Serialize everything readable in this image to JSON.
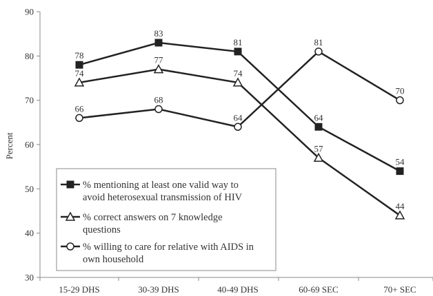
{
  "chart_data": {
    "type": "line",
    "categories": [
      "15-29 DHS",
      "30-39 DHS",
      "40-49 DHS",
      "60-69 SEC",
      "70+ SEC"
    ],
    "ylabel": "Percent",
    "xlabel": "",
    "ylim": [
      30,
      90
    ],
    "yticks": [
      30,
      40,
      50,
      60,
      70,
      80,
      90
    ],
    "grid": false,
    "legend_position": "bottom-left",
    "series": [
      {
        "name_lines": [
          "% mentioning at least one valid way to",
          "avoid heterosexual transmission of HIV"
        ],
        "marker": "filled-square",
        "values": [
          78,
          83,
          81,
          64,
          54
        ],
        "labels": [
          "78",
          "83",
          "81",
          "64",
          "54"
        ]
      },
      {
        "name_lines": [
          "% correct answers on 7 knowledge",
          "questions"
        ],
        "marker": "open-triangle",
        "values": [
          74,
          77,
          74,
          57,
          44
        ],
        "labels": [
          "74",
          "77",
          "74",
          "57",
          "44"
        ]
      },
      {
        "name_lines": [
          "% willing to care for relative with AIDS in",
          "own household"
        ],
        "marker": "open-circle",
        "values": [
          66,
          68,
          64,
          81,
          70
        ],
        "labels": [
          "66",
          "68",
          "64",
          "81",
          "70"
        ]
      }
    ],
    "colors": {
      "line": "#222222",
      "axis": "#888888",
      "text": "#333333"
    }
  }
}
